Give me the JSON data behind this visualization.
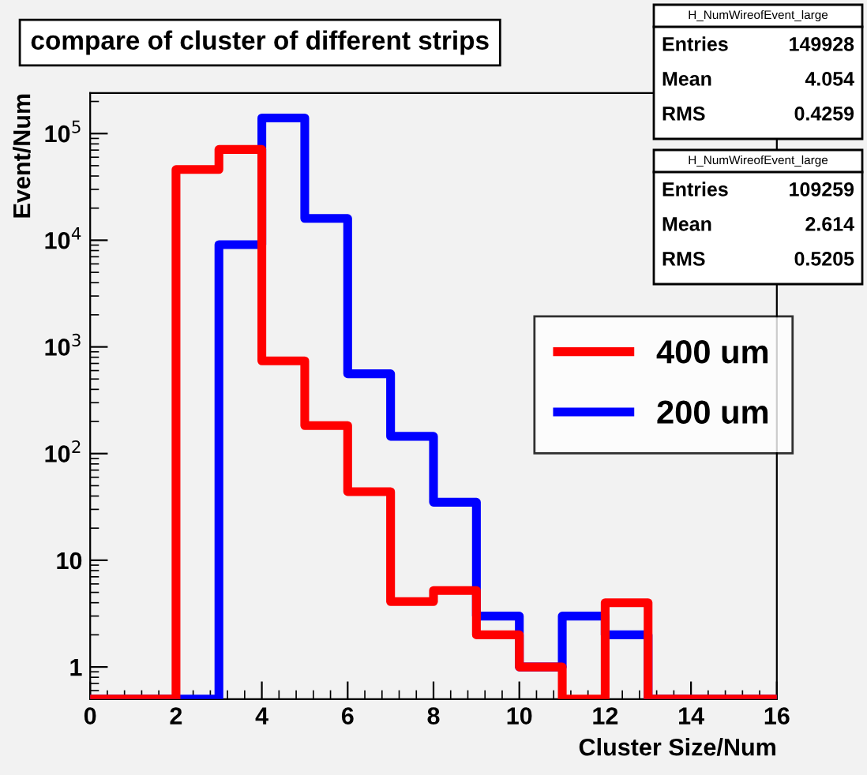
{
  "chart_data": {
    "type": "histogram",
    "title": "compare of cluster of different strips",
    "xlabel": "Cluster Size/Num",
    "ylabel": "Event/Num",
    "bins": [
      0,
      1,
      2,
      3,
      4,
      5,
      6,
      7,
      8,
      9,
      10,
      11,
      12,
      13,
      14,
      15,
      16
    ],
    "series": [
      {
        "name": "400 um",
        "color": "#ff0000",
        "values": [
          null,
          null,
          46000,
          71000,
          740,
          183,
          44,
          4.1,
          5.2,
          2,
          1,
          null,
          4,
          null,
          null,
          null
        ]
      },
      {
        "name": "200 um",
        "color": "#0000ff",
        "values": [
          null,
          null,
          null,
          9100,
          140000,
          16000,
          560,
          145,
          35,
          3,
          1,
          3,
          2,
          null,
          null,
          null
        ]
      }
    ],
    "log": "y",
    "xlim": [
      0,
      16
    ],
    "xticks": [
      0,
      2,
      4,
      6,
      8,
      10,
      12,
      14,
      16
    ],
    "ylim": [
      0.5,
      240000
    ],
    "yticks": [
      1,
      10,
      {
        "value": 100,
        "label": "10$^{2}$"
      },
      {
        "value": 1000,
        "label": "10$^{3}$"
      },
      {
        "value": 10000,
        "label": "10$^{4}$"
      },
      {
        "value": 100000,
        "label": "10$^{5}$"
      }
    ],
    "legend": "right",
    "grid": false,
    "annotations": [
      "H_NumWireofEvent_large",
      "Entries 149928",
      "Mean 4.054",
      "RMS 0.4259",
      "H_NumWireofEvent_large",
      "Entries 109259",
      "Mean 2.614",
      "RMS 0.5205"
    ]
  }
}
